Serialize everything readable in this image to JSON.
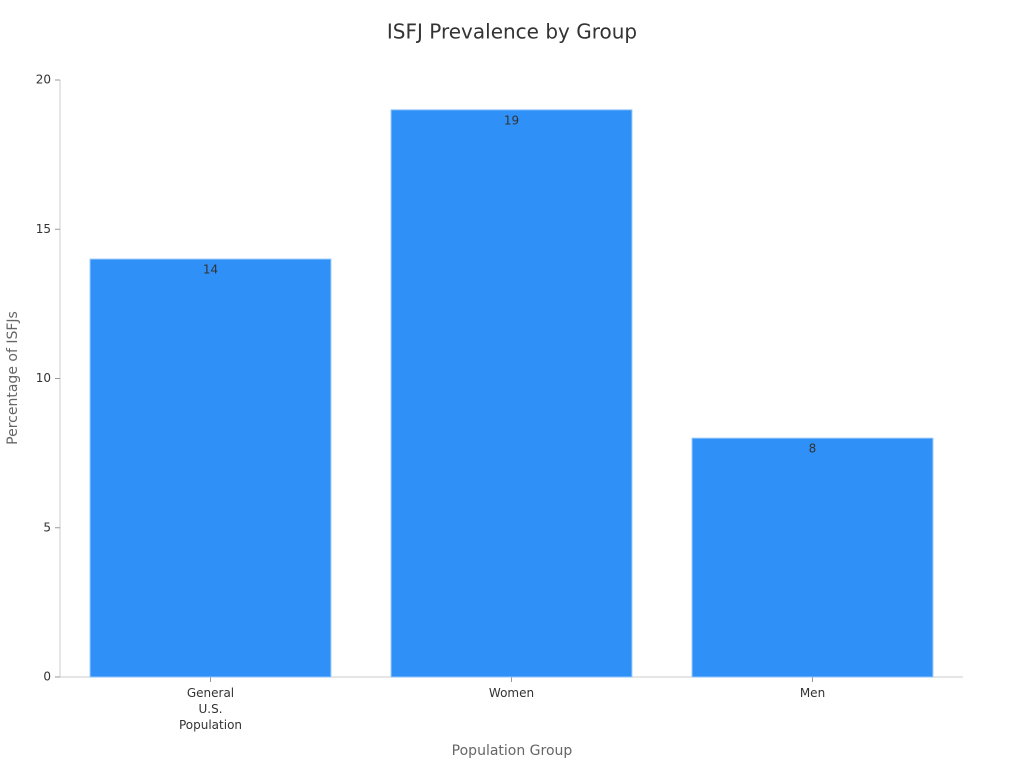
{
  "chart_data": {
    "type": "bar",
    "title": "ISFJ Prevalence by Group",
    "x_label": "Population Group",
    "y_label": "Percentage of ISFJs",
    "categories": [
      "General U.S. Population",
      "Women",
      "Men"
    ],
    "values": [
      14,
      19,
      8
    ],
    "color": "#2f91f8",
    "ylim": [
      0,
      20
    ],
    "yticks": [
      0,
      5,
      10,
      15,
      20
    ],
    "grid": false
  }
}
